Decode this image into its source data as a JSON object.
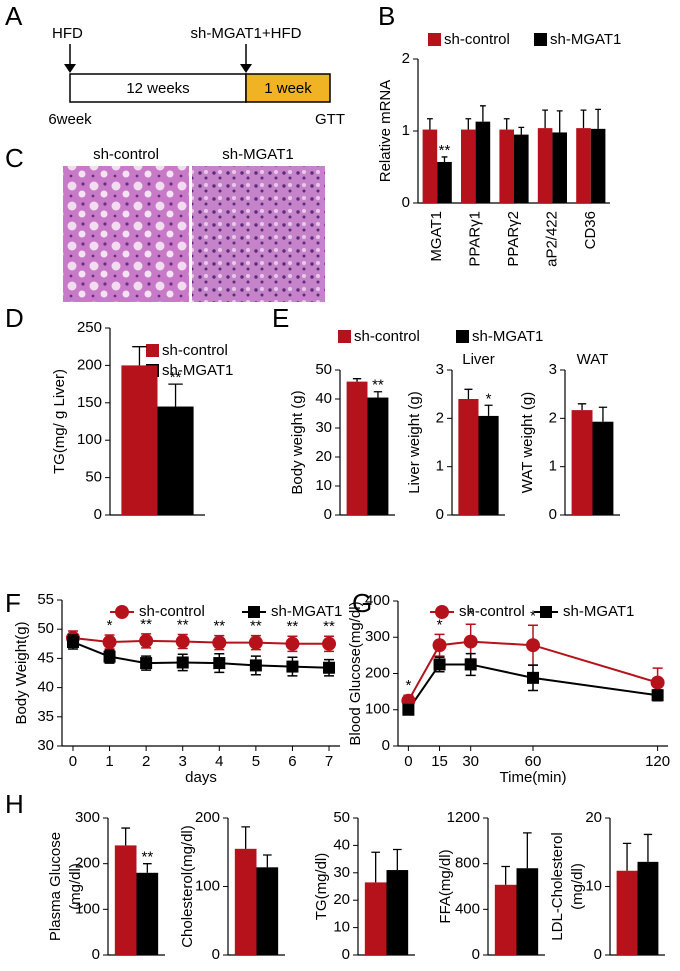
{
  "panel_labels": [
    "A",
    "B",
    "C",
    "D",
    "E",
    "F",
    "G",
    "H"
  ],
  "timeline": {
    "start_label": "HFD",
    "switch_label": "sh-MGAT1+HFD",
    "phase1": "12 weeks",
    "phase2": "1 week",
    "start_age": "6week",
    "end_label": "GTT"
  },
  "histology": {
    "labels": [
      "sh-control",
      "sh-MGAT1"
    ]
  },
  "chart_data": [
    {
      "type": "bar",
      "ylabel": "Relative mRNA",
      "categories": [
        "MGAT1",
        "PPARγ1",
        "PPARγ2",
        "aP2/422",
        "CD36"
      ],
      "series": [
        {
          "name": "sh-control",
          "color": "#b5121b",
          "values": [
            1.02,
            1.02,
            1.02,
            1.04,
            1.04
          ],
          "errors": [
            0.15,
            0.15,
            0.15,
            0.25,
            0.25
          ]
        },
        {
          "name": "sh-MGAT1",
          "color": "#000000",
          "values": [
            0.57,
            1.13,
            0.95,
            0.98,
            1.03
          ],
          "errors": [
            0.07,
            0.22,
            0.1,
            0.3,
            0.27
          ],
          "significance": [
            "**",
            null,
            null,
            null,
            null
          ]
        }
      ],
      "ylim": [
        0,
        2
      ],
      "yticks": [
        0,
        1,
        2
      ],
      "legend": "top"
    },
    {
      "type": "bar",
      "ylabel": "TG(mg/ g Liver)",
      "categories": [
        null
      ],
      "series": [
        {
          "name": "sh-control",
          "color": "#b5121b",
          "values": [
            200
          ],
          "errors": [
            25
          ]
        },
        {
          "name": "sh-MGAT1",
          "color": "#000000",
          "values": [
            145
          ],
          "errors": [
            30
          ],
          "significance": [
            "**"
          ]
        }
      ],
      "ylim": [
        0,
        250
      ],
      "yticks": [
        0,
        50,
        100,
        150,
        200,
        250
      ],
      "legend": "right"
    },
    {
      "type": "bar",
      "ylabel": "Body weight (g)",
      "categories": [
        null
      ],
      "series": [
        {
          "name": "sh-control",
          "color": "#b5121b",
          "values": [
            46
          ],
          "errors": [
            1
          ]
        },
        {
          "name": "sh-MGAT1",
          "color": "#000000",
          "values": [
            40.5
          ],
          "errors": [
            2
          ],
          "significance": [
            "**"
          ]
        }
      ],
      "ylim": [
        0,
        50
      ],
      "yticks": [
        0,
        10,
        20,
        30,
        40,
        50
      ],
      "legend": "top"
    },
    {
      "type": "bar",
      "title": "Liver",
      "ylabel": "Liver weight (g)",
      "categories": [
        null
      ],
      "series": [
        {
          "color": "#b5121b",
          "values": [
            2.4
          ],
          "errors": [
            0.2
          ]
        },
        {
          "color": "#000000",
          "values": [
            2.05
          ],
          "errors": [
            0.22
          ],
          "significance": [
            "*"
          ]
        }
      ],
      "ylim": [
        0,
        3
      ],
      "yticks": [
        0,
        1,
        2,
        3
      ]
    },
    {
      "type": "bar",
      "title": "WAT",
      "ylabel": "WAT weight (g)",
      "categories": [
        null
      ],
      "series": [
        {
          "color": "#b5121b",
          "values": [
            2.17
          ],
          "errors": [
            0.13
          ]
        },
        {
          "color": "#000000",
          "values": [
            1.93
          ],
          "errors": [
            0.3
          ]
        }
      ],
      "ylim": [
        0,
        3
      ],
      "yticks": [
        0,
        1,
        2,
        3
      ]
    },
    {
      "type": "line",
      "ylabel": "Body Weight(g)",
      "xlabel": "days",
      "x": [
        0,
        1,
        2,
        3,
        4,
        5,
        6,
        7
      ],
      "series": [
        {
          "name": "sh-control",
          "color": "#b5121b",
          "marker": "circle",
          "values": [
            48.5,
            47.8,
            48,
            47.9,
            47.7,
            47.7,
            47.5,
            47.5
          ],
          "errors": [
            1.2,
            1.2,
            1.2,
            1.2,
            1.2,
            1.2,
            1.3,
            1.3
          ],
          "significance": [
            null,
            "*",
            "**",
            "**",
            "**",
            "**",
            "**",
            "**"
          ]
        },
        {
          "name": "sh-MGAT1",
          "color": "#000000",
          "marker": "square",
          "values": [
            47.8,
            45.3,
            44.2,
            44.3,
            44.2,
            43.8,
            43.6,
            43.4
          ],
          "errors": [
            1.2,
            1.1,
            1.2,
            1.4,
            1.6,
            1.6,
            1.6,
            1.4
          ]
        }
      ],
      "xlim": [
        -0.3,
        7.3
      ],
      "xticks": [
        0,
        1,
        2,
        3,
        4,
        5,
        6,
        7
      ],
      "ylim": [
        30,
        55
      ],
      "yticks": [
        30,
        35,
        40,
        45,
        50,
        55
      ],
      "legend": "top"
    },
    {
      "type": "line",
      "ylabel": "Blood Glucose(mg/dl)",
      "xlabel": "Time(min)",
      "x": [
        0,
        15,
        30,
        60,
        120
      ],
      "series": [
        {
          "name": "sh-control",
          "color": "#b5121b",
          "marker": "circle",
          "values": [
            125,
            278,
            288,
            278,
            175
          ],
          "errors": [
            15,
            30,
            48,
            55,
            40
          ],
          "significance": [
            "*",
            "*",
            "*",
            "*",
            null
          ]
        },
        {
          "name": "sh-MGAT1",
          "color": "#000000",
          "marker": "square",
          "values": [
            100,
            225,
            225,
            188,
            140
          ],
          "errors": [
            10,
            20,
            30,
            35,
            15
          ]
        }
      ],
      "xlim": [
        -5,
        125
      ],
      "xticks": [
        0,
        15,
        30,
        60,
        120
      ],
      "ylim": [
        0,
        400
      ],
      "yticks": [
        0,
        100,
        200,
        300,
        400
      ],
      "legend": "top"
    },
    {
      "type": "bar",
      "ylabel": [
        "Plasma Glucose",
        "(mg/dl)"
      ],
      "categories": [
        null
      ],
      "series": [
        {
          "color": "#b5121b",
          "values": [
            240
          ],
          "errors": [
            38
          ]
        },
        {
          "color": "#000000",
          "values": [
            180
          ],
          "errors": [
            20
          ],
          "significance": [
            "**"
          ]
        }
      ],
      "ylim": [
        0,
        300
      ],
      "yticks": [
        0,
        100,
        200,
        300
      ]
    },
    {
      "type": "bar",
      "ylabel": "Cholesterol(mg/dl)",
      "categories": [
        null
      ],
      "series": [
        {
          "color": "#b5121b",
          "values": [
            155
          ],
          "errors": [
            32
          ]
        },
        {
          "color": "#000000",
          "values": [
            128
          ],
          "errors": [
            18
          ]
        }
      ],
      "ylim": [
        0,
        200
      ],
      "yticks": [
        0,
        100,
        200
      ]
    },
    {
      "type": "bar",
      "ylabel": "TG(mg/dl)",
      "categories": [
        null
      ],
      "series": [
        {
          "color": "#b5121b",
          "values": [
            26.5
          ],
          "errors": [
            11
          ]
        },
        {
          "color": "#000000",
          "values": [
            31
          ],
          "errors": [
            7.5
          ]
        }
      ],
      "ylim": [
        0,
        50
      ],
      "yticks": [
        0,
        10,
        20,
        30,
        40,
        50
      ]
    },
    {
      "type": "bar",
      "ylabel": "FFA(mg/dl)",
      "categories": [
        null
      ],
      "series": [
        {
          "color": "#b5121b",
          "values": [
            615
          ],
          "errors": [
            160
          ]
        },
        {
          "color": "#000000",
          "values": [
            760
          ],
          "errors": [
            310
          ]
        }
      ],
      "ylim": [
        0,
        1200
      ],
      "yticks": [
        0,
        400,
        800,
        1200
      ]
    },
    {
      "type": "bar",
      "ylabel": [
        "LDL-Cholesterol",
        "(mg/dl)"
      ],
      "categories": [
        null
      ],
      "series": [
        {
          "color": "#b5121b",
          "values": [
            12.3
          ],
          "errors": [
            4
          ]
        },
        {
          "color": "#000000",
          "values": [
            13.6
          ],
          "errors": [
            4
          ]
        }
      ],
      "ylim": [
        0,
        20
      ],
      "yticks": [
        0,
        10,
        20
      ]
    }
  ]
}
